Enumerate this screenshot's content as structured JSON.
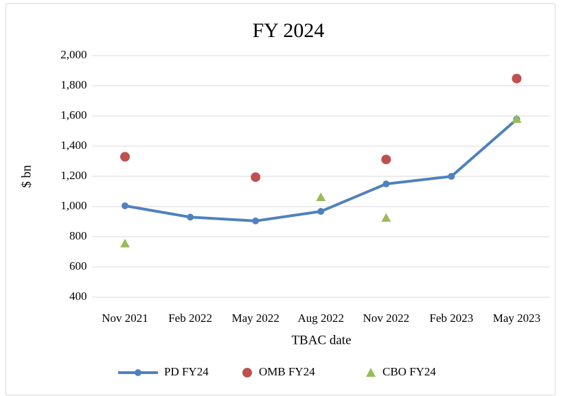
{
  "chart_data": {
    "type": "line",
    "title": "FY 2024",
    "x_label": "TBAC date",
    "y_label": "$ bn",
    "categories": [
      "Nov 2021",
      "Feb 2022",
      "May 2022",
      "Aug 2022",
      "Nov 2022",
      "Feb 2023",
      "May 2023"
    ],
    "series": [
      {
        "name": "PD FY24",
        "color": "#4f81bd",
        "style": "line",
        "marker": "circle",
        "values": [
          1005,
          930,
          905,
          968,
          1150,
          1200,
          1578
        ]
      },
      {
        "name": "OMB FY24",
        "color": "#c0504d",
        "style": "points",
        "marker": "circle",
        "values": [
          1330,
          null,
          1195,
          null,
          1312,
          null,
          1848
        ]
      },
      {
        "name": "CBO FY24",
        "color": "#9bbb59",
        "style": "points",
        "marker": "triangle",
        "values": [
          755,
          null,
          null,
          1062,
          925,
          null,
          1580
        ]
      }
    ],
    "ylim": [
      400,
      2000
    ],
    "yticks": [
      400,
      600,
      800,
      {
        "value": 1000,
        "label": "1,000"
      },
      {
        "value": 1200,
        "label": "1,200"
      },
      {
        "value": 1400,
        "label": "1,400"
      },
      {
        "value": 1600,
        "label": "1,600"
      },
      {
        "value": 1800,
        "label": "1,800"
      },
      {
        "value": 2000,
        "label": "2,000"
      }
    ],
    "grid": true,
    "legend": "bottom"
  }
}
